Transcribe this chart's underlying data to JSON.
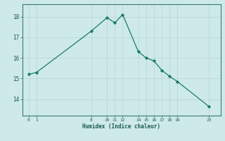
{
  "x": [
    0,
    1,
    8,
    10,
    11,
    12,
    14,
    15,
    16,
    17,
    18,
    19,
    23
  ],
  "y": [
    15.2,
    15.3,
    17.3,
    17.95,
    17.7,
    18.1,
    16.3,
    16.0,
    15.85,
    15.4,
    15.1,
    14.85,
    13.65
  ],
  "xticks": [
    0,
    1,
    8,
    10,
    11,
    12,
    14,
    15,
    16,
    17,
    18,
    19,
    23
  ],
  "yticks": [
    14,
    15,
    16,
    17,
    18
  ],
  "xlabel": "Humidex (Indice chaleur)",
  "ylim": [
    13.2,
    18.6
  ],
  "xlim": [
    -0.8,
    24.5
  ],
  "line_color": "#1a7a6e",
  "marker_color": "#1a7a6e",
  "bg_color": "#ceeae8",
  "grid_color": "#b8d8d6",
  "spine_color": "#3a7a74",
  "tick_color": "#1a5a54",
  "label_color": "#1a5a54"
}
